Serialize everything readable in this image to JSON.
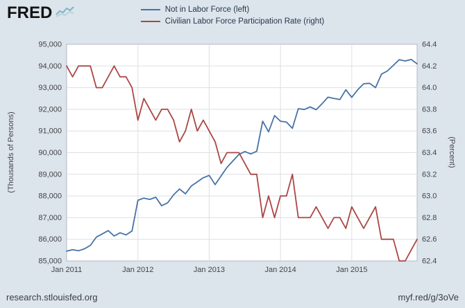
{
  "branding": {
    "logo_text": "FRED"
  },
  "legend": [
    {
      "label": "Not in Labor Force (left)",
      "color": "#4572a7"
    },
    {
      "label": "Civilian Labor Force Participation Rate (right)",
      "color": "#aa4643"
    }
  ],
  "footer": {
    "source": "research.stlouisfed.org",
    "short_url": "myf.red/g/3oVe"
  },
  "chart_data": {
    "type": "line",
    "title": "",
    "grid": true,
    "legend_position": "top",
    "x": [
      "2011-01",
      "2011-02",
      "2011-03",
      "2011-04",
      "2011-05",
      "2011-06",
      "2011-07",
      "2011-08",
      "2011-09",
      "2011-10",
      "2011-11",
      "2011-12",
      "2012-01",
      "2012-02",
      "2012-03",
      "2012-04",
      "2012-05",
      "2012-06",
      "2012-07",
      "2012-08",
      "2012-09",
      "2012-10",
      "2012-11",
      "2012-12",
      "2013-01",
      "2013-02",
      "2013-03",
      "2013-04",
      "2013-05",
      "2013-06",
      "2013-07",
      "2013-08",
      "2013-09",
      "2013-10",
      "2013-11",
      "2013-12",
      "2014-01",
      "2014-02",
      "2014-03",
      "2014-04",
      "2014-05",
      "2014-06",
      "2014-07",
      "2014-08",
      "2014-09",
      "2014-10",
      "2014-11",
      "2014-12",
      "2015-01",
      "2015-02",
      "2015-03",
      "2015-04",
      "2015-05",
      "2015-06",
      "2015-07",
      "2015-08",
      "2015-09",
      "2015-10",
      "2015-11",
      "2015-12"
    ],
    "x_tick_labels": [
      "Jan 2011",
      "Jan 2012",
      "Jan 2013",
      "Jan 2014",
      "Jan 2015"
    ],
    "x_tick_indices": [
      0,
      12,
      24,
      36,
      48
    ],
    "left_axis": {
      "title": "(Thousands of Persons)",
      "ylim": [
        85000,
        95000
      ],
      "tick_labels": [
        "85,000",
        "86,000",
        "87,000",
        "88,000",
        "89,000",
        "90,000",
        "91,000",
        "92,000",
        "93,000",
        "94,000",
        "95,000"
      ]
    },
    "right_axis": {
      "title": "(Percent)",
      "ylim": [
        62.4,
        64.4
      ],
      "tick_labels": [
        "62.4",
        "62.6",
        "62.8",
        "63.0",
        "63.2",
        "63.4",
        "63.6",
        "63.8",
        "64.0",
        "64.2",
        "64.4"
      ]
    },
    "series": [
      {
        "name": "Not in Labor Force (left)",
        "axis": "left",
        "color": "#4572a7",
        "values": [
          85450,
          85520,
          85470,
          85560,
          85720,
          86100,
          86250,
          86400,
          86150,
          86300,
          86200,
          86380,
          87800,
          87900,
          87840,
          87940,
          87550,
          87680,
          88050,
          88320,
          88100,
          88460,
          88650,
          88840,
          88950,
          88520,
          88920,
          89320,
          89620,
          89910,
          90050,
          89940,
          90060,
          91450,
          90960,
          91710,
          91450,
          91410,
          91120,
          92030,
          91990,
          92110,
          91980,
          92260,
          92560,
          92500,
          92450,
          92900,
          92550,
          92900,
          93180,
          93200,
          93000,
          93620,
          93770,
          94030,
          94290,
          94230,
          94300,
          94100
        ]
      },
      {
        "name": "Civilian Labor Force Participation Rate (right)",
        "axis": "right",
        "color": "#aa4643",
        "values": [
          64.2,
          64.1,
          64.2,
          64.2,
          64.2,
          64.0,
          64.0,
          64.1,
          64.2,
          64.1,
          64.1,
          64.0,
          63.7,
          63.9,
          63.8,
          63.7,
          63.8,
          63.8,
          63.7,
          63.5,
          63.6,
          63.8,
          63.6,
          63.7,
          63.6,
          63.5,
          63.3,
          63.4,
          63.4,
          63.4,
          63.3,
          63.2,
          63.2,
          62.8,
          63.0,
          62.8,
          63.0,
          63.0,
          63.2,
          62.8,
          62.8,
          62.8,
          62.9,
          62.8,
          62.7,
          62.8,
          62.8,
          62.7,
          62.9,
          62.8,
          62.7,
          62.8,
          62.9,
          62.6,
          62.6,
          62.6,
          62.4,
          62.4,
          62.5,
          62.6
        ]
      }
    ]
  }
}
